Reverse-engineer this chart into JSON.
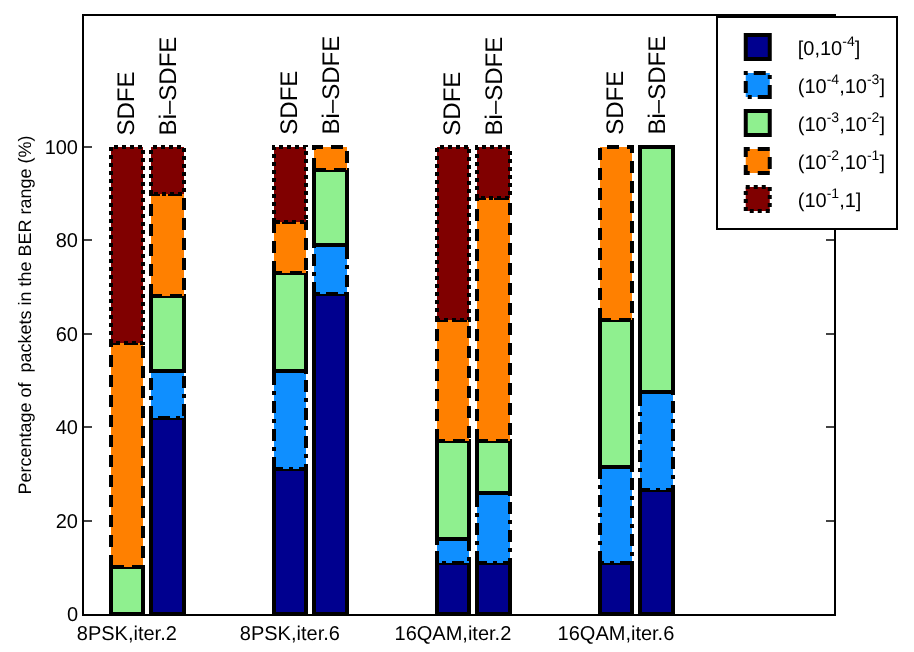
{
  "chart_data": {
    "type": "bar",
    "stacked": true,
    "ylabel": "Percentage of  packets in the BER range (%)",
    "categories": [
      "8PSK,iter.2",
      null,
      null,
      null,
      "8PSK,iter.6",
      null,
      null,
      null,
      "16QAM,iter.2",
      null,
      null,
      null,
      "16QAM,iter.6",
      null,
      null,
      null
    ],
    "ylim": [
      0,
      128
    ],
    "yticks": [
      0,
      20,
      40,
      60,
      80,
      100
    ],
    "grid": false,
    "legend": "top right",
    "series": [
      {
        "name": "[0,10$^{-4}$]",
        "color": "#00008f",
        "line_style": "solid",
        "values": [
          null,
          42,
          null,
          null,
          31,
          68.5,
          null,
          null,
          11,
          11,
          null,
          null,
          11,
          26.5,
          null,
          null
        ]
      },
      {
        "name": "(10$^{-4}$,10$^{-3}$]",
        "color": "#0f8fff",
        "line_style": "dashdot",
        "values": [
          null,
          10,
          null,
          null,
          21,
          10.5,
          null,
          null,
          5,
          15,
          null,
          null,
          20.5,
          21,
          null,
          null
        ]
      },
      {
        "name": "(10$^{-3}$,10$^{-2}$]",
        "color": "#8ff08f",
        "line_style": "solid",
        "values": [
          10,
          16,
          null,
          null,
          21,
          16,
          null,
          null,
          21,
          11,
          null,
          null,
          31.5,
          52.5,
          null,
          null
        ]
      },
      {
        "name": "(10$^{-2}$,10$^{-1}$]",
        "color": "#ff8000",
        "line_style": "dashed",
        "values": [
          48,
          22,
          null,
          null,
          11,
          5,
          null,
          null,
          26,
          52,
          null,
          null,
          37,
          null,
          null,
          null
        ]
      },
      {
        "name": "(10$^{-1}$,1]",
        "color": "#800000",
        "line_style": "dotted",
        "values": [
          42,
          10,
          null,
          null,
          16,
          null,
          null,
          null,
          37,
          11,
          null,
          null,
          null,
          null,
          null,
          null
        ]
      }
    ],
    "annotations": [
      {
        "text": "SDFE",
        "y": 100
      },
      {
        "text": "Bi–SDFE",
        "y": 100
      },
      {
        "text": "SDFE",
        "y": 100
      },
      {
        "text": "Bi–SDFE",
        "y": 100
      },
      {
        "text": "SDFE",
        "y": 100
      },
      {
        "text": "Bi–SDFE",
        "y": 100
      },
      {
        "text": "SDFE",
        "y": 100
      },
      {
        "text": "Bi–SDFE",
        "y": 100
      }
    ]
  }
}
